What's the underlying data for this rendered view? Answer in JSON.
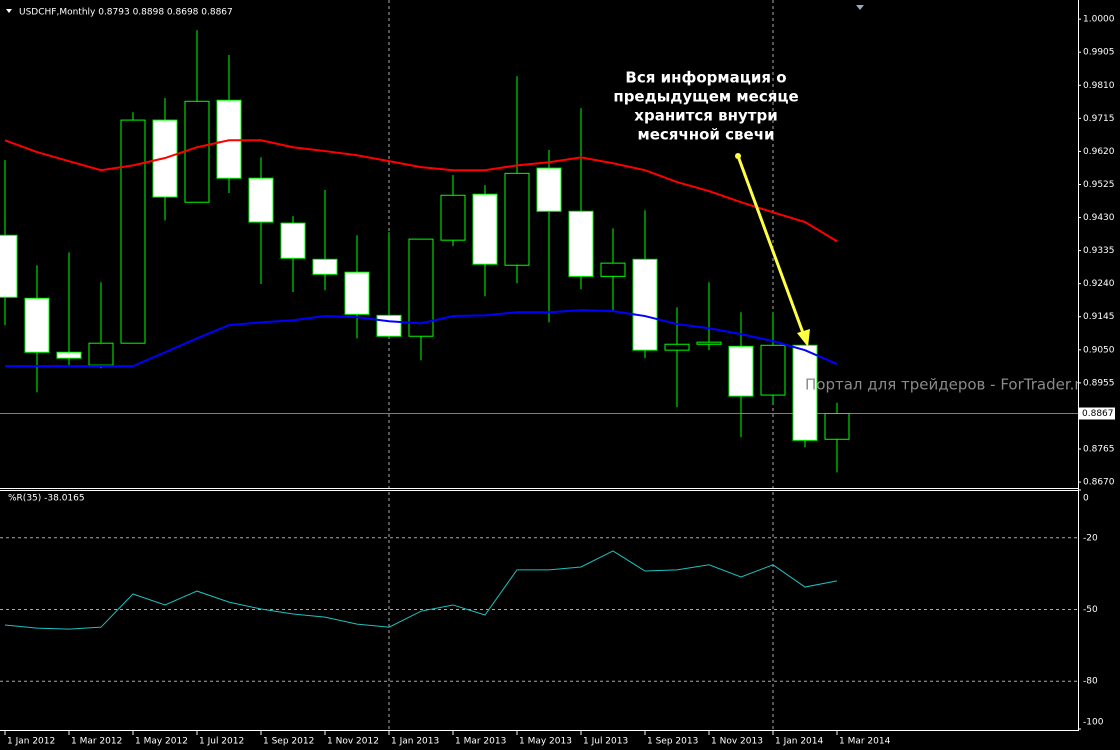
{
  "chart_data": [
    {
      "type": "candlestick",
      "title": "USDCHF,Monthly  0.8793 0.8898 0.8698 0.8867",
      "categories": [
        "1 Jan 2012",
        null,
        "1 Mar 2012",
        null,
        "1 May 2012",
        null,
        "1 Jul 2012",
        null,
        "1 Sep 2012",
        null,
        "1 Nov 2012",
        null,
        "1 Jan 2013",
        null,
        "1 Mar 2013",
        null,
        "1 May 2013",
        null,
        "1 Jul 2013",
        null,
        "1 Sep 2013",
        null,
        "1 Nov 2013",
        null,
        "1 Jan 2014",
        null,
        "1 Mar 2014"
      ],
      "open": [
        0.9379,
        0.9198,
        0.9043,
        0.9006,
        0.9069,
        0.971,
        0.9474,
        0.9767,
        0.9543,
        0.9414,
        0.931,
        0.9273,
        0.9149,
        0.9089,
        0.9365,
        0.9497,
        0.9293,
        0.9572,
        0.9448,
        0.9261,
        0.931,
        0.9049,
        0.9066,
        0.906,
        0.892,
        0.9063,
        0.8793
      ],
      "high": [
        0.9595,
        0.9293,
        0.933,
        0.9244,
        0.9733,
        0.9773,
        0.9968,
        0.9897,
        0.9603,
        0.9434,
        0.9509,
        0.9379,
        0.9388,
        0.9368,
        0.9552,
        0.9523,
        0.9836,
        0.9624,
        0.9744,
        0.9399,
        0.9451,
        0.9172,
        0.9244,
        0.9158,
        0.9158,
        0.9063,
        0.8898
      ],
      "low": [
        0.9121,
        0.8928,
        0.9006,
        0.8997,
        0.9069,
        0.9422,
        0.9474,
        0.95,
        0.9239,
        0.9216,
        0.9221,
        0.9083,
        0.9083,
        0.902,
        0.9348,
        0.9204,
        0.9241,
        0.9129,
        0.9224,
        0.9164,
        0.9026,
        0.8885,
        0.9049,
        0.8799,
        0.8897,
        0.877,
        0.8698
      ],
      "close": [
        0.9201,
        0.9043,
        0.9026,
        0.9069,
        0.971,
        0.9489,
        0.9764,
        0.9543,
        0.9417,
        0.9313,
        0.9267,
        0.9152,
        0.9089,
        0.9368,
        0.9494,
        0.9296,
        0.9557,
        0.9448,
        0.9261,
        0.9299,
        0.9049,
        0.9066,
        0.9072,
        0.8917,
        0.9063,
        0.879,
        0.8867
      ],
      "up_color": "#000000",
      "down_color": "#ffffff",
      "wick_color": "#00ff00",
      "series": [
        {
          "color": "#ff0000",
          "values": [
            0.9652,
            0.9618,
            0.9592,
            0.9566,
            0.958,
            0.9601,
            0.9632,
            0.9652,
            0.9652,
            0.9632,
            0.9621,
            0.9609,
            0.9592,
            0.9575,
            0.9566,
            0.9566,
            0.958,
            0.9589,
            0.9603,
            0.9586,
            0.9566,
            0.9532,
            0.9506,
            0.9474,
            0.9445,
            0.9417,
            0.9362
          ]
        },
        {
          "color": "#0000ff",
          "values": [
            0.9003,
            0.9003,
            0.9003,
            0.9003,
            0.9003,
            0.9043,
            0.9083,
            0.9121,
            0.9129,
            0.9135,
            0.9147,
            0.9144,
            0.9132,
            0.9126,
            0.9147,
            0.9149,
            0.9158,
            0.9158,
            0.9164,
            0.9161,
            0.9147,
            0.9124,
            0.9112,
            0.9095,
            0.9075,
            0.9049,
            0.9009
          ]
        }
      ],
      "current_price": 0.8867,
      "ylim": [
        0.8653,
        1.0055
      ],
      "yticks": [
        {
          "value": 1.0,
          "label": "1.0000"
        },
        0.9905,
        {
          "value": 0.981,
          "label": "0.9810"
        },
        0.9715,
        {
          "value": 0.962,
          "label": "0.9620"
        },
        0.9525,
        {
          "value": 0.943,
          "label": "0.9430"
        },
        0.9335,
        {
          "value": 0.924,
          "label": "0.9240"
        },
        0.9145,
        {
          "value": 0.905,
          "label": "0.9050"
        },
        0.8955,
        0.8765,
        {
          "value": 0.867,
          "label": "0.8670"
        }
      ],
      "annotation": [
        "Вся информация о",
        "предыдущем месяце",
        "хранится внутри",
        "месячной свечи"
      ],
      "watermark": "Портал для трейдеров - ForTrader.ru"
    },
    {
      "type": "line",
      "title": "%R(35) -38.0165",
      "color": "#20c0c0",
      "values": [
        -56.5,
        -57.8,
        -58.2,
        -57.4,
        -43.5,
        -48.1,
        -42.3,
        -46.9,
        -49.8,
        -51.9,
        -53.2,
        -56.1,
        -57.4,
        -50.7,
        -48.1,
        -52.3,
        -33.4,
        -33.4,
        -32.2,
        -25.5,
        -33.9,
        -33.4,
        -31.3,
        -36.4,
        -31.3,
        -40.6,
        -38.0165
      ],
      "ylim": [
        -100,
        0
      ],
      "yticks": [
        0,
        -20,
        -50,
        -80,
        -100
      ]
    }
  ]
}
